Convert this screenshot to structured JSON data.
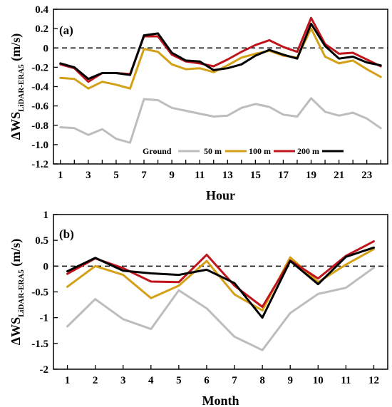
{
  "chart_data": [
    {
      "type": "line",
      "panel_label": "(a)",
      "xlabel": "Hour",
      "ylabel_main": "ΔWS",
      "ylabel_sub": "LiDAR-ERA5",
      "ylabel_unit": " (m/s)",
      "x": [
        1,
        2,
        3,
        4,
        5,
        6,
        7,
        8,
        9,
        10,
        11,
        12,
        13,
        14,
        15,
        16,
        17,
        18,
        19,
        20,
        21,
        22,
        23,
        24
      ],
      "xticks": [
        1,
        3,
        5,
        7,
        9,
        11,
        13,
        15,
        17,
        19,
        21,
        23
      ],
      "ylim": [
        -1.2,
        0.4
      ],
      "yticks": [
        0.4,
        0.2,
        0,
        -0.2,
        -0.4,
        -0.6,
        -0.8,
        -1.0,
        -1.2
      ],
      "ytick_labels": [
        "0.4",
        "0.2",
        "0",
        "-0.2",
        "-0.4",
        "-0.6",
        "-0.8",
        "-1.0",
        "-1.2"
      ],
      "zero_line": "dashed",
      "legend_title": "Ground",
      "legend_position": "bottom-right",
      "series": [
        {
          "name": "50 m",
          "color": "#bdbdbd",
          "values": [
            -0.82,
            -0.83,
            -0.9,
            -0.84,
            -0.94,
            -0.98,
            -0.53,
            -0.54,
            -0.62,
            -0.65,
            -0.68,
            -0.71,
            -0.7,
            -0.62,
            -0.58,
            -0.61,
            -0.69,
            -0.71,
            -0.52,
            -0.66,
            -0.7,
            -0.67,
            -0.73,
            -0.83
          ]
        },
        {
          "name": "100 m",
          "color": "#d4a017",
          "values": [
            -0.31,
            -0.32,
            -0.42,
            -0.35,
            -0.38,
            -0.42,
            -0.01,
            -0.04,
            -0.17,
            -0.22,
            -0.21,
            -0.25,
            -0.18,
            -0.1,
            -0.06,
            -0.03,
            -0.08,
            -0.1,
            0.2,
            -0.09,
            -0.16,
            -0.13,
            -0.22,
            -0.3
          ]
        },
        {
          "name": "200 m",
          "color": "#c0141c",
          "values": [
            -0.17,
            -0.21,
            -0.35,
            -0.26,
            -0.26,
            -0.27,
            0.12,
            0.12,
            -0.07,
            -0.14,
            -0.16,
            -0.19,
            -0.12,
            -0.04,
            0.03,
            0.08,
            0.01,
            -0.04,
            0.31,
            0.04,
            -0.06,
            -0.05,
            -0.12,
            -0.19
          ]
        },
        {
          "name": "",
          "color": "#000000",
          "values": [
            -0.16,
            -0.2,
            -0.32,
            -0.26,
            -0.26,
            -0.28,
            0.13,
            0.15,
            -0.05,
            -0.13,
            -0.14,
            -0.23,
            -0.21,
            -0.17,
            -0.08,
            -0.02,
            -0.07,
            -0.11,
            0.25,
            0.02,
            -0.11,
            -0.09,
            -0.15,
            -0.18
          ]
        }
      ]
    },
    {
      "type": "line",
      "panel_label": "(b)",
      "xlabel": "Month",
      "ylabel_main": "ΔWS",
      "ylabel_sub": "LiDAR-ERA5",
      "ylabel_unit": " (m/s)",
      "x": [
        1,
        2,
        3,
        4,
        5,
        6,
        7,
        8,
        9,
        10,
        11,
        12
      ],
      "xticks": [
        1,
        2,
        3,
        4,
        5,
        6,
        7,
        8,
        9,
        10,
        11,
        12
      ],
      "ylim": [
        -2,
        1
      ],
      "yticks": [
        1,
        0.5,
        0,
        -0.5,
        -1,
        -1.5,
        -2
      ],
      "ytick_labels": [
        "1",
        "0.5",
        "0",
        "-0.5",
        "-1",
        "-1.5",
        "-2"
      ],
      "zero_line": "dashed",
      "series": [
        {
          "name": "50 m",
          "color": "#bdbdbd",
          "values": [
            -1.17,
            -0.64,
            -1.03,
            -1.22,
            -0.47,
            -0.82,
            -1.37,
            -1.63,
            -0.91,
            -0.54,
            -0.42,
            -0.03
          ]
        },
        {
          "name": "100 m",
          "color": "#d4a017",
          "values": [
            -0.4,
            0.0,
            -0.17,
            -0.62,
            -0.38,
            0.1,
            -0.55,
            -0.86,
            0.17,
            -0.31,
            0.03,
            0.33
          ]
        },
        {
          "name": "200 m",
          "color": "#c0141c",
          "values": [
            -0.15,
            0.15,
            -0.04,
            -0.3,
            -0.31,
            0.22,
            -0.38,
            -0.79,
            0.11,
            -0.24,
            0.2,
            0.48
          ]
        },
        {
          "name": "",
          "color": "#000000",
          "values": [
            -0.1,
            0.16,
            -0.09,
            -0.14,
            -0.17,
            -0.07,
            -0.33,
            -1.0,
            0.1,
            -0.35,
            0.18,
            0.36
          ]
        }
      ]
    }
  ]
}
